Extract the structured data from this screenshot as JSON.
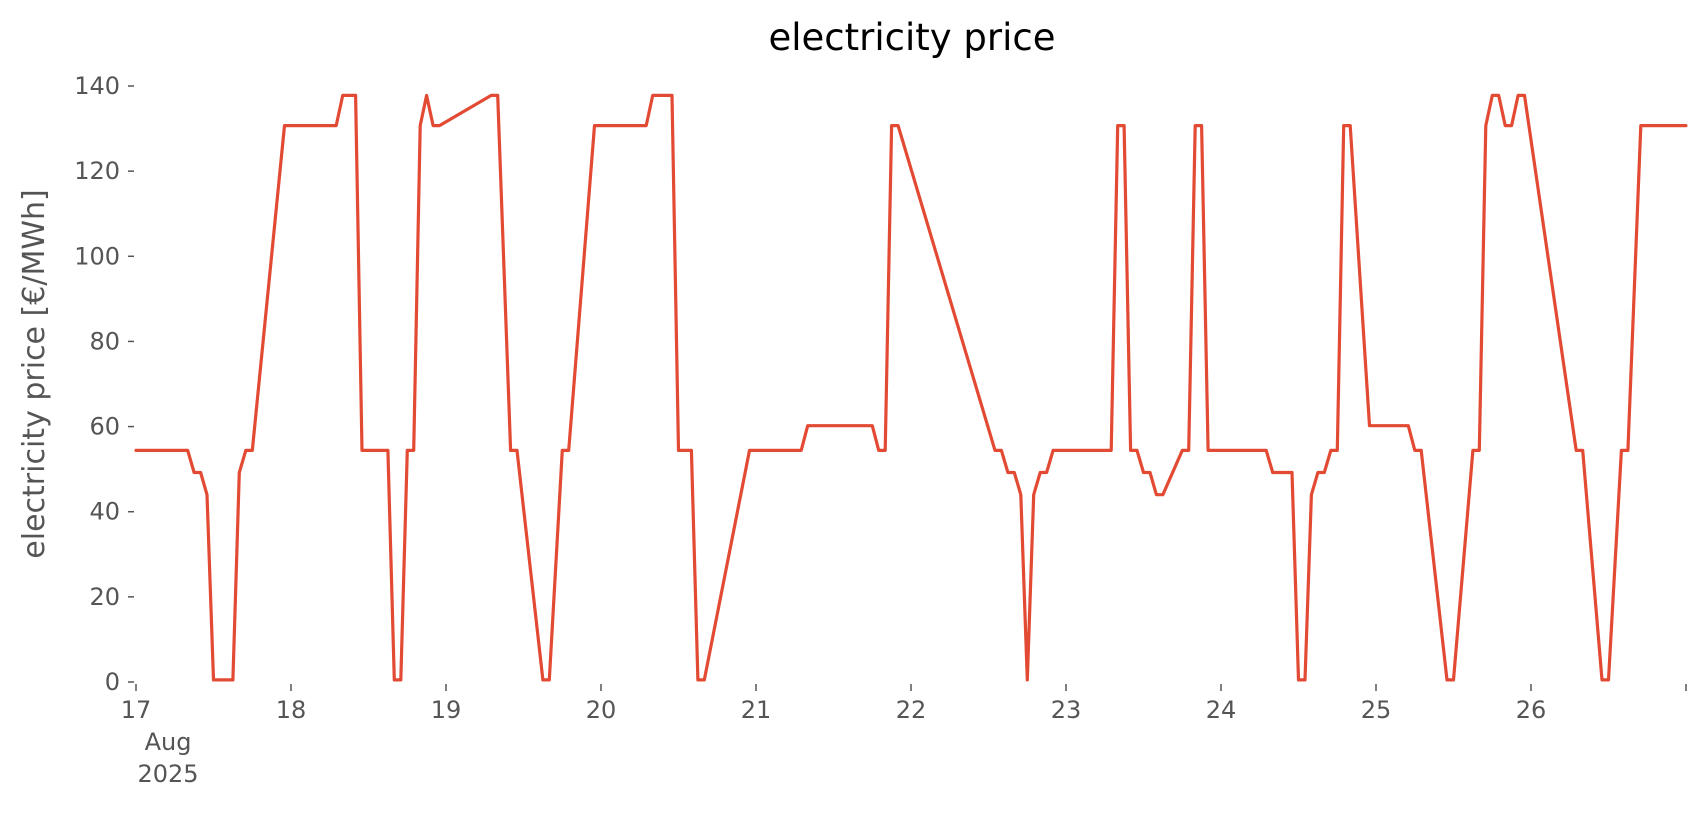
{
  "chart_data": {
    "type": "line",
    "title": "electricity price",
    "xlabel": "",
    "ylabel": "electricity price [€/MWh]",
    "ylim": [
      0,
      140
    ],
    "yticks": [
      0,
      20,
      40,
      60,
      80,
      100,
      120,
      140
    ],
    "xlim": [
      "2025-08-17 00:00",
      "2025-08-27 00:00"
    ],
    "xticks": [
      {
        "x": "2025-08-17",
        "label": "17",
        "sublabels": [
          "Aug",
          "2025"
        ]
      },
      {
        "x": "2025-08-18",
        "label": "18"
      },
      {
        "x": "2025-08-19",
        "label": "19"
      },
      {
        "x": "2025-08-20",
        "label": "20"
      },
      {
        "x": "2025-08-21",
        "label": "21"
      },
      {
        "x": "2025-08-22",
        "label": "22"
      },
      {
        "x": "2025-08-23",
        "label": "23"
      },
      {
        "x": "2025-08-24",
        "label": "24"
      },
      {
        "x": "2025-08-25",
        "label": "25"
      },
      {
        "x": "2025-08-26",
        "label": "26"
      },
      {
        "x": "2025-08-27",
        "label": ""
      }
    ],
    "grid": false,
    "color": "#e24a33",
    "series": [
      {
        "x": [
          "2025-08-17 00:00",
          "2025-08-17 08:00",
          "2025-08-17 09:00",
          "2025-08-17 10:00",
          "2025-08-17 11:00",
          "2025-08-17 12:00",
          "2025-08-17 15:00",
          "2025-08-17 16:00",
          "2025-08-17 17:00",
          "2025-08-17 18:00",
          "2025-08-17 23:00",
          "2025-08-18 07:00",
          "2025-08-18 08:00",
          "2025-08-18 10:00",
          "2025-08-18 11:00",
          "2025-08-18 15:00",
          "2025-08-18 16:00",
          "2025-08-18 17:00",
          "2025-08-18 18:00",
          "2025-08-18 19:00",
          "2025-08-18 20:00",
          "2025-08-18 21:00",
          "2025-08-18 22:00",
          "2025-08-18 23:00",
          "2025-08-19 07:00",
          "2025-08-19 08:00",
          "2025-08-19 10:00",
          "2025-08-19 11:00",
          "2025-08-19 15:00",
          "2025-08-19 16:00",
          "2025-08-19 18:00",
          "2025-08-19 19:00",
          "2025-08-19 23:00",
          "2025-08-20 07:00",
          "2025-08-20 08:00",
          "2025-08-20 11:00",
          "2025-08-20 12:00",
          "2025-08-20 14:00",
          "2025-08-20 15:00",
          "2025-08-20 16:00",
          "2025-08-20 23:00",
          "2025-08-21 07:00",
          "2025-08-21 08:00",
          "2025-08-21 18:00",
          "2025-08-21 19:00",
          "2025-08-21 20:00",
          "2025-08-21 21:00",
          "2025-08-21 22:00",
          "2025-08-22 13:00",
          "2025-08-22 14:00",
          "2025-08-22 15:00",
          "2025-08-22 16:00",
          "2025-08-22 17:00",
          "2025-08-22 18:00",
          "2025-08-22 19:00",
          "2025-08-22 20:00",
          "2025-08-22 21:00",
          "2025-08-22 22:00",
          "2025-08-23 07:00",
          "2025-08-23 08:00",
          "2025-08-23 09:00",
          "2025-08-23 10:00",
          "2025-08-23 11:00",
          "2025-08-23 12:00",
          "2025-08-23 13:00",
          "2025-08-23 14:00",
          "2025-08-23 15:00",
          "2025-08-23 18:00",
          "2025-08-23 19:00",
          "2025-08-23 20:00",
          "2025-08-23 21:00",
          "2025-08-23 22:00",
          "2025-08-24 07:00",
          "2025-08-24 08:00",
          "2025-08-24 11:00",
          "2025-08-24 12:00",
          "2025-08-24 13:00",
          "2025-08-24 14:00",
          "2025-08-24 15:00",
          "2025-08-24 16:00",
          "2025-08-24 17:00",
          "2025-08-24 18:00",
          "2025-08-24 19:00",
          "2025-08-24 20:00",
          "2025-08-24 23:00",
          "2025-08-25 05:00",
          "2025-08-25 06:00",
          "2025-08-25 07:00",
          "2025-08-25 11:00",
          "2025-08-25 12:00",
          "2025-08-25 15:00",
          "2025-08-25 16:00",
          "2025-08-25 17:00",
          "2025-08-25 18:00",
          "2025-08-25 19:00",
          "2025-08-25 20:00",
          "2025-08-25 21:00",
          "2025-08-25 22:00",
          "2025-08-25 23:00",
          "2025-08-26 07:00",
          "2025-08-26 08:00",
          "2025-08-26 11:00",
          "2025-08-26 12:00",
          "2025-08-26 14:00",
          "2025-08-26 15:00",
          "2025-08-26 17:00",
          "2025-08-26 18:00",
          "2025-08-26 19:00",
          "2025-08-26 23:59"
        ],
        "y": [
          54.4,
          54.4,
          49.2,
          49.2,
          44.0,
          0.5,
          0.5,
          49.2,
          54.4,
          54.4,
          130.7,
          130.7,
          137.8,
          137.8,
          54.4,
          54.4,
          0.5,
          0.5,
          54.4,
          54.4,
          130.7,
          137.8,
          130.7,
          130.7,
          137.8,
          137.8,
          54.4,
          54.4,
          0.5,
          0.5,
          54.4,
          54.4,
          130.7,
          130.7,
          137.8,
          137.8,
          54.4,
          54.4,
          0.5,
          0.5,
          54.4,
          54.4,
          60.2,
          60.2,
          54.4,
          54.4,
          130.7,
          130.7,
          54.4,
          54.4,
          49.2,
          49.2,
          44.0,
          0.5,
          44.0,
          49.2,
          49.2,
          54.4,
          54.4,
          130.7,
          130.7,
          54.4,
          54.4,
          49.2,
          49.2,
          44.0,
          44.0,
          54.4,
          54.4,
          130.7,
          130.7,
          54.4,
          54.4,
          49.2,
          49.2,
          0.5,
          0.5,
          44.0,
          49.2,
          49.2,
          54.4,
          54.4,
          130.7,
          130.7,
          60.2,
          60.2,
          54.4,
          54.4,
          0.5,
          0.5,
          54.4,
          54.4,
          130.7,
          137.8,
          137.8,
          130.7,
          130.7,
          137.8,
          137.8,
          54.4,
          54.4,
          0.5,
          0.5,
          54.4,
          54.4,
          130.7,
          130.7,
          130.7,
          130.7
        ]
      }
    ]
  }
}
